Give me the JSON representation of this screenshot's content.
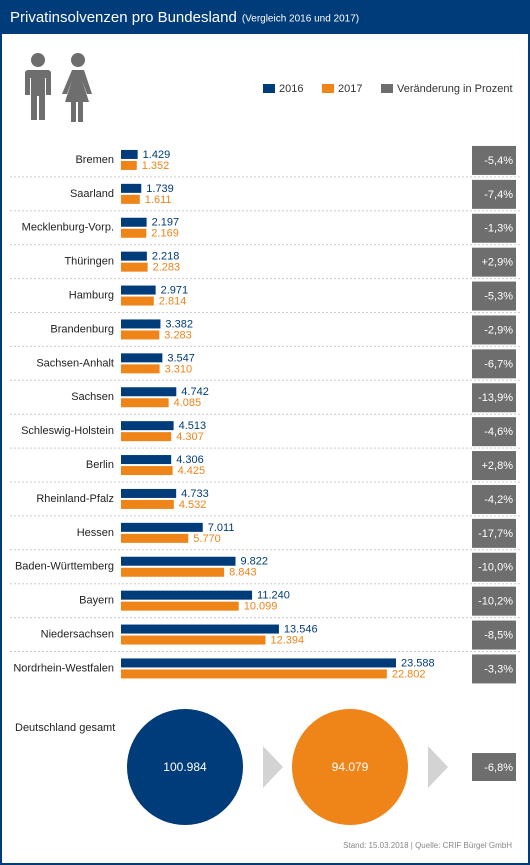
{
  "chart_data": {
    "type": "bar",
    "orientation": "horizontal",
    "title": "Privatinsolvenzen pro Bundesland",
    "subtitle": "(Vergleich 2016 und 2017)",
    "categories": [
      "Bremen",
      "Saarland",
      "Mecklenburg-Vorp.",
      "Thüringen",
      "Hamburg",
      "Brandenburg",
      "Sachsen-Anhalt",
      "Sachsen",
      "Schleswig-Holstein",
      "Berlin",
      "Rheinland-Pfalz",
      "Hessen",
      "Baden-Württemberg",
      "Bayern",
      "Niedersachsen",
      "Nordrhein-Westfalen"
    ],
    "series": [
      {
        "name": "2016",
        "color": "#003b7a",
        "mark": "bar",
        "values": [
          1429,
          1739,
          2197,
          2218,
          2971,
          3382,
          3547,
          4742,
          4513,
          4306,
          4733,
          7011,
          9822,
          11240,
          13546,
          23588
        ],
        "value_labels": [
          "1.429",
          "1.739",
          "2.197",
          "2.218",
          "2.971",
          "3.382",
          "3.547",
          "4.742",
          "4.513",
          "4.306",
          "4.733",
          "7.011",
          "9.822",
          "11.240",
          "13.546",
          "23.588"
        ]
      },
      {
        "name": "2017",
        "color": "#ef8419",
        "mark": "bar",
        "values": [
          1352,
          1611,
          2169,
          2283,
          2814,
          3283,
          3310,
          4085,
          4307,
          4425,
          4532,
          5770,
          8843,
          10099,
          12394,
          22802
        ],
        "value_labels": [
          "1.352",
          "1.611",
          "2.169",
          "2.283",
          "2.814",
          "3.283",
          "3.310",
          "4.085",
          "4.307",
          "4.425",
          "4.532",
          "5.770",
          "8.843",
          "10.099",
          "12.394",
          "22.802"
        ]
      },
      {
        "name": "Veränderung in Prozent",
        "color": "#6e6e6e",
        "mark": "box",
        "values": [
          -5.4,
          -7.4,
          -1.3,
          2.9,
          -5.3,
          -2.9,
          -6.7,
          -13.9,
          -4.6,
          2.8,
          -4.2,
          -17.7,
          -10.0,
          -10.2,
          -8.5,
          -3.3
        ],
        "value_labels": [
          "-5,4%",
          "-7,4%",
          "-1,3%",
          "+2,9%",
          "-5,3%",
          "-2,9%",
          "-6,7%",
          "-13,9%",
          "-4,6%",
          "+2,8%",
          "-4,2%",
          "-17,7%",
          "-10,0%",
          "-10,2%",
          "-8,5%",
          "-3,3%"
        ]
      }
    ],
    "total": {
      "label": "Deutschland gesamt",
      "values": [
        100984,
        94079
      ],
      "value_labels": [
        "100.984",
        "94.079"
      ],
      "change": -6.8,
      "change_label": "-6,8%"
    },
    "source": "Stand: 15.03.2018 | Quelle: CRIF Bürgel GmbH"
  }
}
